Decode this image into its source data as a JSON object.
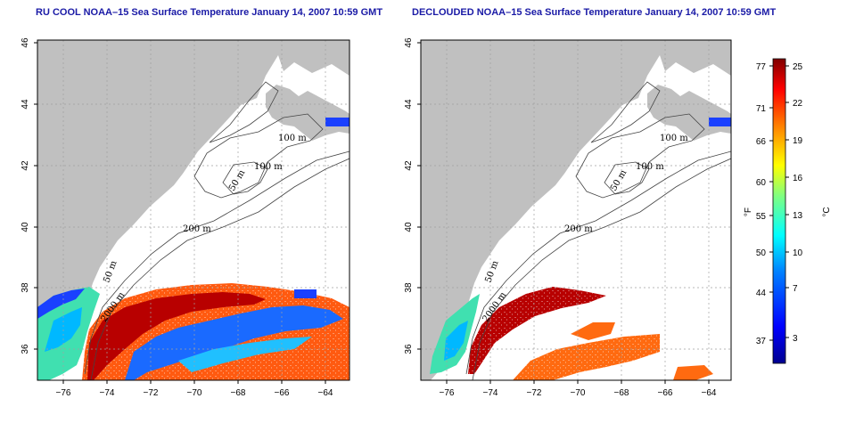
{
  "panels": [
    {
      "title": "RU COOL NOAA–15 Sea Surface Temperature January 14, 2007 10:59 GMT",
      "contour_labels": [
        "100 m",
        "100 m",
        "50 m",
        "200 m",
        "50 m",
        "2000 m"
      ]
    },
    {
      "title": "DECLOUDED NOAA–15 Sea Surface Temperature January 14, 2007 10:59 GMT",
      "contour_labels": [
        "100 m",
        "100 m",
        "50 m",
        "200 m",
        "50 m",
        "2000 m"
      ]
    }
  ],
  "axes": {
    "lon_ticks": [
      "−76",
      "−74",
      "−72",
      "−70",
      "−68",
      "−66",
      "−64"
    ],
    "lat_ticks": [
      "36",
      "38",
      "40",
      "42",
      "44",
      "46"
    ]
  },
  "colorbar": {
    "fahrenheit_unit": "°F",
    "celsius_unit": "°C",
    "fahrenheit_ticks": [
      "77",
      "71",
      "66",
      "60",
      "55",
      "50",
      "44",
      "37"
    ],
    "celsius_ticks": [
      "25",
      "22",
      "19",
      "16",
      "13",
      "10",
      "7",
      "3"
    ],
    "colors": [
      "#00008f",
      "#0000ff",
      "#0080ff",
      "#00ffff",
      "#80ff80",
      "#ffff00",
      "#ff8000",
      "#ff0000",
      "#800000"
    ]
  },
  "colors": {
    "land": "#c0c0c0",
    "title": "#1a1aa6"
  }
}
